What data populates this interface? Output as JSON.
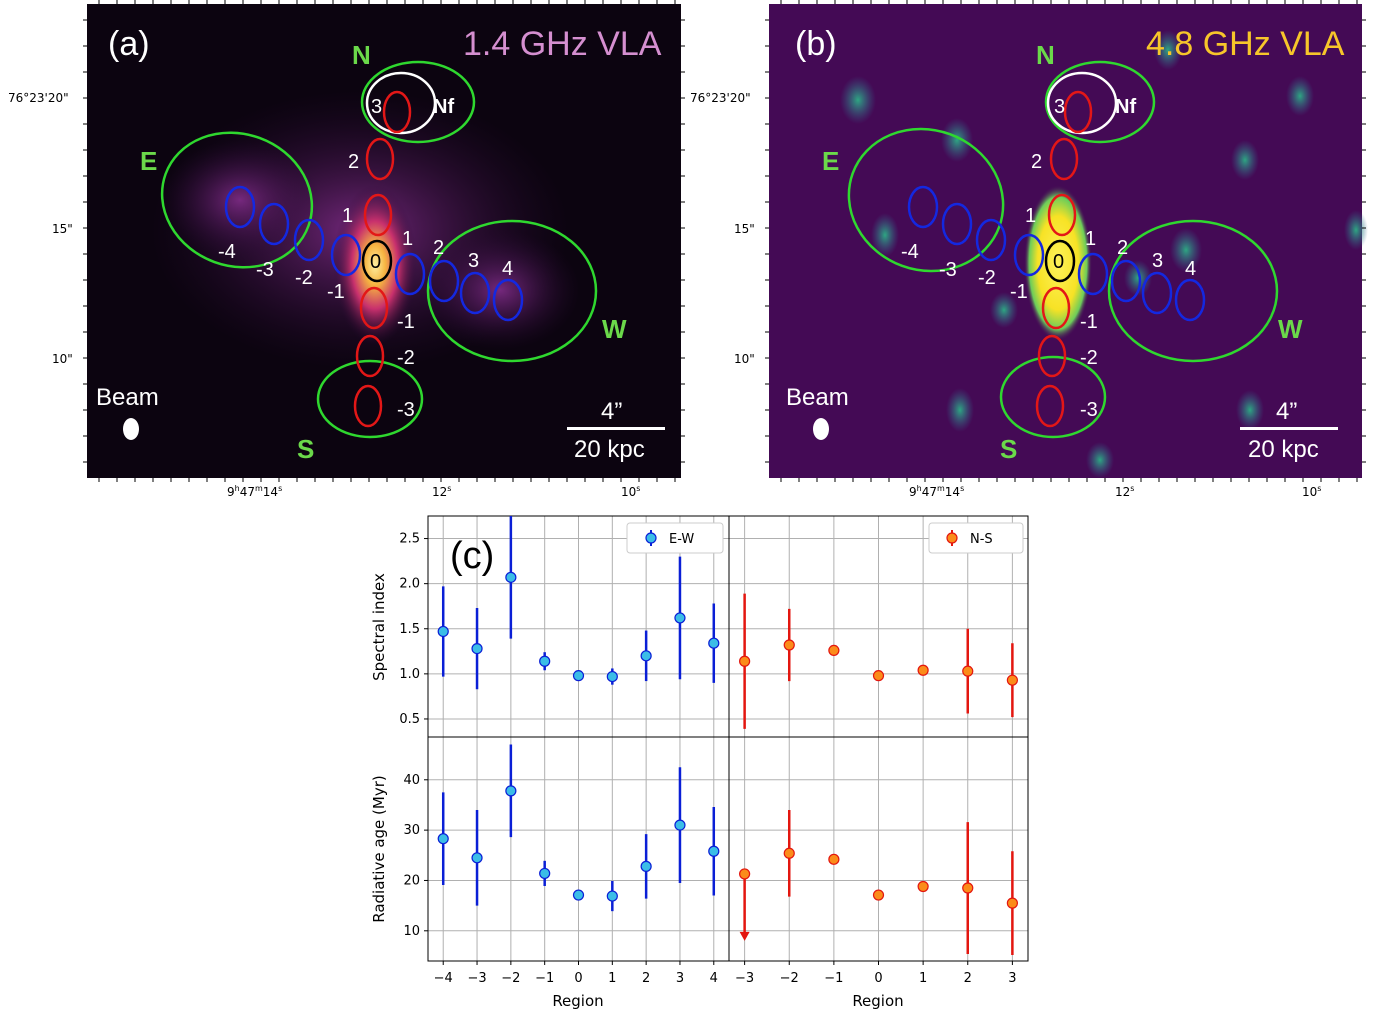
{
  "panel_a": {
    "tag": "(a)",
    "title": "1.4 GHz VLA",
    "title_color": "#d58fd0",
    "bg": "#0c0410",
    "region_labels": {
      "N": "N",
      "E": "E",
      "W": "W",
      "S": "S",
      "Nf": "Nf"
    },
    "beam_label": "Beam",
    "scale_top": "4”",
    "scale_bottom": "20 kpc",
    "ns_labels": [
      "3",
      "2",
      "1",
      "-1",
      "-2",
      "-3"
    ],
    "ew_labels": [
      "-4",
      "-3",
      "-2",
      "-1",
      "1",
      "2",
      "3",
      "4"
    ],
    "center_label": "0"
  },
  "panel_b": {
    "tag": "(b)",
    "title": "4.8 GHz VLA",
    "title_color": "#f7c62a",
    "bg": "#440a55",
    "region_labels": {
      "N": "N",
      "E": "E",
      "W": "W",
      "S": "S",
      "Nf": "Nf"
    },
    "beam_label": "Beam",
    "scale_top": "4”",
    "scale_bottom": "20 kpc",
    "ns_labels": [
      "3",
      "2",
      "1",
      "-1",
      "-2",
      "-3"
    ],
    "ew_labels": [
      "-4",
      "-3",
      "-2",
      "-1",
      "1",
      "2",
      "3",
      "4"
    ],
    "center_label": "0"
  },
  "dec_ticks": [
    "76°23'20\"",
    "15\"",
    "10\""
  ],
  "ra_ticks": [
    "9h47m14s",
    "12s",
    "10s"
  ],
  "ra_main": "9",
  "ra_sup_h": "h",
  "ra_mid": "47",
  "ra_sup_m": "m",
  "ra_end": "14",
  "ra_sup_s": "s",
  "ra_12": "12",
  "ra_10": "10",
  "panel_c": {
    "tag": "(c)",
    "xlabel": "Region",
    "ylabel_top": "Spectral index",
    "ylabel_bottom": "Radiative age (Myr)",
    "legend_left": "E-W",
    "legend_right": "N-S",
    "color_ew_marker": "#3bbde7",
    "color_ew_bar": "#0a1fd6",
    "color_ns_marker": "#fb8c1a",
    "color_ns_bar": "#e3160f",
    "top_yticks": [
      "0.5",
      "1.0",
      "1.5",
      "2.0",
      "2.5"
    ],
    "bottom_yticks": [
      "10",
      "20",
      "30",
      "40"
    ],
    "left_xticks": [
      "−4",
      "−3",
      "−2",
      "−1",
      "0",
      "1",
      "2",
      "3",
      "4"
    ],
    "right_xticks": [
      "−3",
      "−2",
      "−1",
      "0",
      "1",
      "2",
      "3"
    ]
  },
  "chart_data": [
    {
      "type": "scatter",
      "title": "",
      "xlabel": "Region",
      "ylabel": "Spectral index",
      "ylim": [
        0.3,
        2.75
      ],
      "series": [
        {
          "name": "E-W",
          "x": [
            -4,
            -3,
            -2,
            -1,
            0,
            1,
            2,
            3,
            4
          ],
          "y": [
            1.47,
            1.28,
            2.07,
            1.14,
            0.98,
            0.97,
            1.2,
            1.62,
            1.34
          ],
          "err": [
            0.5,
            0.45,
            0.68,
            0.1,
            0.03,
            0.09,
            0.28,
            0.68,
            0.44
          ]
        }
      ]
    },
    {
      "type": "scatter",
      "title": "",
      "xlabel": "Region",
      "ylabel": "Spectral index",
      "ylim": [
        0.3,
        2.75
      ],
      "series": [
        {
          "name": "N-S",
          "x": [
            -3,
            -2,
            -1,
            0,
            1,
            2,
            3
          ],
          "y": [
            1.14,
            1.32,
            1.26,
            0.98,
            1.04,
            1.03,
            0.93
          ],
          "err": [
            0.75,
            0.4,
            0.03,
            0.03,
            0.03,
            0.47,
            0.41
          ]
        }
      ]
    },
    {
      "type": "scatter",
      "title": "",
      "xlabel": "Region",
      "ylabel": "Radiative age (Myr)",
      "ylim": [
        4,
        48.5
      ],
      "series": [
        {
          "name": "E-W",
          "x": [
            -4,
            -3,
            -2,
            -1,
            0,
            1,
            2,
            3,
            4
          ],
          "y": [
            28.3,
            24.5,
            37.8,
            21.4,
            17.1,
            16.9,
            22.8,
            31.0,
            25.8
          ],
          "err": [
            9.2,
            9.5,
            9.2,
            2.5,
            0.6,
            3.0,
            6.4,
            11.5,
            8.8
          ]
        }
      ]
    },
    {
      "type": "scatter",
      "title": "",
      "xlabel": "Region",
      "ylabel": "Radiative age (Myr)",
      "ylim": [
        4,
        48.5
      ],
      "series": [
        {
          "name": "N-S",
          "x": [
            -3,
            -2,
            -1,
            0,
            1,
            2,
            3
          ],
          "y": [
            21.3,
            25.4,
            24.2,
            17.1,
            18.8,
            18.5,
            15.5
          ],
          "err": [
            0,
            8.6,
            0.6,
            0.6,
            0.6,
            13.1,
            10.3
          ],
          "upper_limit": [
            true,
            false,
            false,
            false,
            false,
            false,
            false
          ]
        }
      ]
    }
  ]
}
